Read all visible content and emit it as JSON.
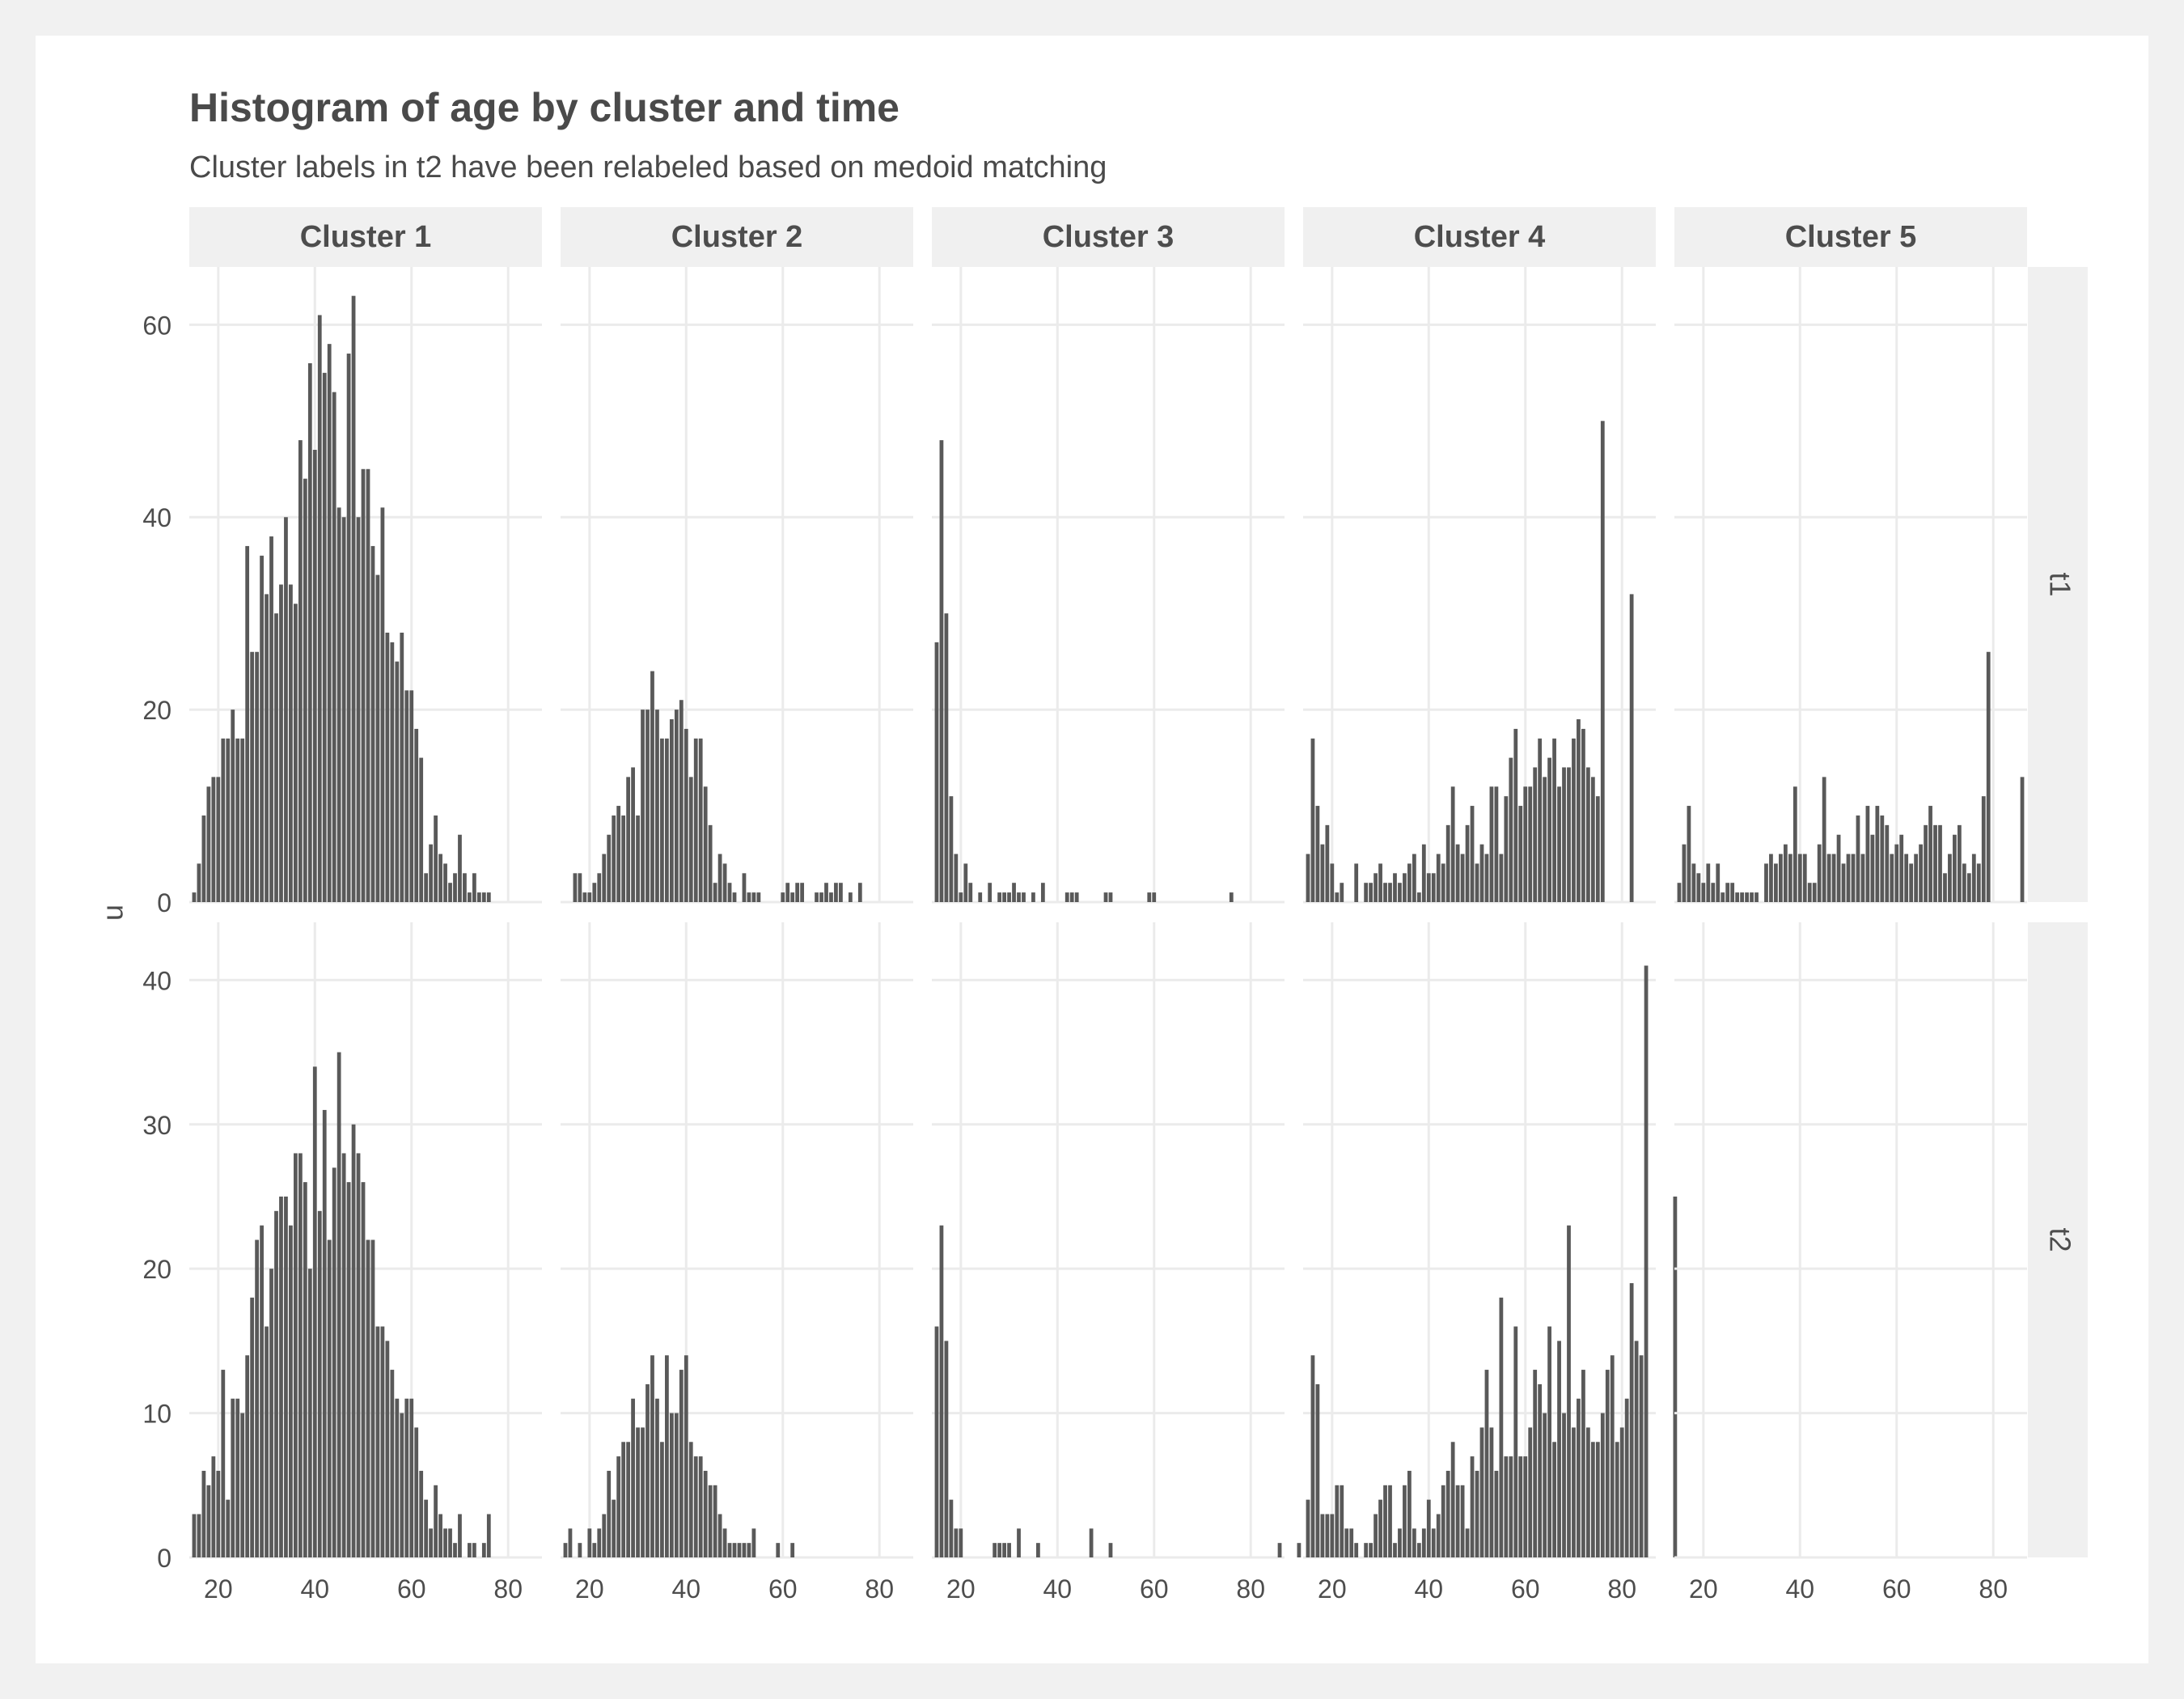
{
  "chart_data": {
    "type": "bar",
    "title": "Histogram of age by cluster and time",
    "subtitle": "Cluster labels in t2 have been relabeled based on medoid matching",
    "xlabel": "",
    "ylabel": "n",
    "grid": true,
    "legend": "none",
    "colors": {
      "bar": "#595959",
      "strip": "#f0f0f0",
      "grid": "#ebebeb",
      "text": "#4d4d4d"
    },
    "x_ticks": [
      20,
      40,
      60,
      80
    ],
    "xlim": [
      14,
      87
    ],
    "columns": [
      "Cluster 1",
      "Cluster 2",
      "Cluster 3",
      "Cluster 4",
      "Cluster 5"
    ],
    "rows": [
      {
        "label": "t1",
        "ylim": [
          0,
          66
        ],
        "y_ticks": [
          0,
          20,
          40,
          60
        ]
      },
      {
        "label": "t2",
        "ylim": [
          0,
          44
        ],
        "y_ticks": [
          0,
          10,
          20,
          30,
          40
        ]
      }
    ],
    "x_start": 15,
    "panels": [
      {
        "row": "t1",
        "cluster": "Cluster 1",
        "values": [
          1,
          4,
          9,
          12,
          13,
          13,
          17,
          17,
          20,
          17,
          17,
          37,
          26,
          26,
          36,
          32,
          38,
          30,
          33,
          40,
          33,
          31,
          48,
          44,
          56,
          47,
          61,
          55,
          58,
          53,
          41,
          40,
          57,
          63,
          40,
          45,
          45,
          37,
          34,
          41,
          28,
          27,
          25,
          28,
          22,
          22,
          18,
          15,
          3,
          6,
          9,
          5,
          4,
          2,
          3,
          7,
          3,
          1,
          3,
          1,
          1,
          1
        ]
      },
      {
        "row": "t1",
        "cluster": "Cluster 2",
        "values": [
          0,
          0,
          3,
          3,
          1,
          1,
          2,
          3,
          5,
          7,
          9,
          10,
          9,
          13,
          14,
          9,
          20,
          20,
          24,
          20,
          17,
          17,
          19,
          20,
          21,
          18,
          13,
          17,
          17,
          12,
          8,
          2,
          5,
          4,
          2,
          1,
          0,
          3,
          1,
          1,
          1,
          0,
          0,
          0,
          0,
          1,
          2,
          1,
          2,
          2,
          0,
          0,
          1,
          1,
          2,
          1,
          2,
          2,
          0,
          1,
          0,
          2
        ]
      },
      {
        "row": "t1",
        "cluster": "Cluster 3",
        "values": [
          27,
          48,
          30,
          11,
          5,
          1,
          4,
          2,
          0,
          1,
          0,
          2,
          0,
          1,
          1,
          1,
          2,
          1,
          1,
          0,
          1,
          0,
          2,
          0,
          0,
          0,
          0,
          1,
          1,
          1,
          0,
          0,
          0,
          0,
          0,
          1,
          1,
          0,
          0,
          0,
          0,
          0,
          0,
          0,
          1,
          1,
          0,
          0,
          0,
          0,
          0,
          0,
          0,
          0,
          0,
          0,
          0,
          0,
          0,
          0,
          0,
          1
        ]
      },
      {
        "row": "t1",
        "cluster": "Cluster 4",
        "values": [
          5,
          17,
          10,
          6,
          8,
          4,
          1,
          2,
          0,
          0,
          4,
          0,
          2,
          2,
          3,
          4,
          2,
          2,
          3,
          2,
          3,
          4,
          5,
          1,
          6,
          3,
          3,
          5,
          4,
          8,
          12,
          6,
          5,
          8,
          10,
          4,
          6,
          5,
          12,
          12,
          5,
          11,
          15,
          18,
          10,
          12,
          12,
          14,
          17,
          13,
          15,
          17,
          12,
          14,
          14,
          17,
          19,
          18,
          14,
          13,
          11,
          50,
          0,
          0,
          0,
          0,
          0,
          32
        ]
      },
      {
        "row": "t1",
        "cluster": "Cluster 5",
        "values": [
          2,
          6,
          10,
          4,
          3,
          2,
          4,
          2,
          4,
          1,
          2,
          2,
          1,
          1,
          1,
          1,
          1,
          0,
          4,
          5,
          4,
          5,
          6,
          5,
          12,
          5,
          5,
          2,
          2,
          6,
          13,
          5,
          5,
          7,
          4,
          5,
          5,
          9,
          5,
          10,
          7,
          10,
          9,
          8,
          5,
          6,
          7,
          5,
          4,
          5,
          6,
          8,
          10,
          8,
          8,
          3,
          5,
          7,
          8,
          4,
          3,
          5,
          4,
          11,
          26,
          0,
          0,
          0,
          0,
          0,
          0,
          13
        ]
      },
      {
        "row": "t2",
        "cluster": "Cluster 1",
        "values": [
          3,
          3,
          6,
          5,
          7,
          6,
          13,
          4,
          11,
          11,
          10,
          14,
          18,
          22,
          23,
          16,
          20,
          24,
          25,
          25,
          23,
          28,
          28,
          26,
          20,
          34,
          24,
          31,
          22,
          27,
          35,
          28,
          26,
          30,
          28,
          26,
          22,
          22,
          16,
          16,
          15,
          13,
          11,
          10,
          11,
          11,
          9,
          6,
          4,
          2,
          5,
          3,
          2,
          2,
          1,
          3,
          0,
          1,
          1,
          0,
          1,
          3
        ]
      },
      {
        "row": "t2",
        "cluster": "Cluster 2",
        "values": [
          1,
          2,
          0,
          1,
          0,
          2,
          1,
          2,
          3,
          6,
          4,
          7,
          8,
          8,
          11,
          9,
          9,
          12,
          14,
          11,
          8,
          14,
          10,
          10,
          13,
          14,
          8,
          7,
          7,
          6,
          5,
          5,
          3,
          2,
          1,
          1,
          1,
          1,
          1,
          2,
          0,
          0,
          0,
          0,
          1,
          0,
          0,
          1
        ]
      },
      {
        "row": "t2",
        "cluster": "Cluster 3",
        "values": [
          16,
          23,
          15,
          4,
          2,
          2,
          0,
          0,
          0,
          0,
          0,
          0,
          1,
          1,
          1,
          1,
          0,
          2,
          0,
          0,
          0,
          1,
          0,
          0,
          0,
          0,
          0,
          0,
          0,
          0,
          0,
          0,
          2,
          0,
          0,
          0,
          1,
          0,
          0,
          0,
          0,
          0,
          0,
          0,
          0,
          0,
          0,
          0,
          0,
          0,
          0,
          0,
          0,
          0,
          0,
          0,
          0,
          0,
          0,
          0,
          0,
          0,
          0,
          0,
          0,
          0,
          0,
          0,
          0,
          0,
          0,
          1,
          0,
          0,
          0,
          1
        ]
      },
      {
        "row": "t2",
        "cluster": "Cluster 4",
        "values": [
          4,
          14,
          12,
          3,
          3,
          3,
          5,
          5,
          2,
          2,
          1,
          0,
          1,
          1,
          3,
          4,
          5,
          5,
          1,
          2,
          5,
          6,
          2,
          1,
          2,
          4,
          2,
          3,
          5,
          6,
          8,
          5,
          5,
          2,
          7,
          6,
          9,
          13,
          9,
          6,
          18,
          7,
          7,
          16,
          7,
          7,
          9,
          13,
          12,
          10,
          16,
          8,
          15,
          10,
          23,
          9,
          11,
          13,
          9,
          8,
          8,
          10,
          13,
          14,
          8,
          9,
          11,
          19,
          15,
          14,
          41,
          0,
          0,
          0,
          0,
          0,
          25
        ]
      },
      {
        "row": "t2",
        "cluster": "Cluster 5",
        "values": []
      }
    ]
  }
}
